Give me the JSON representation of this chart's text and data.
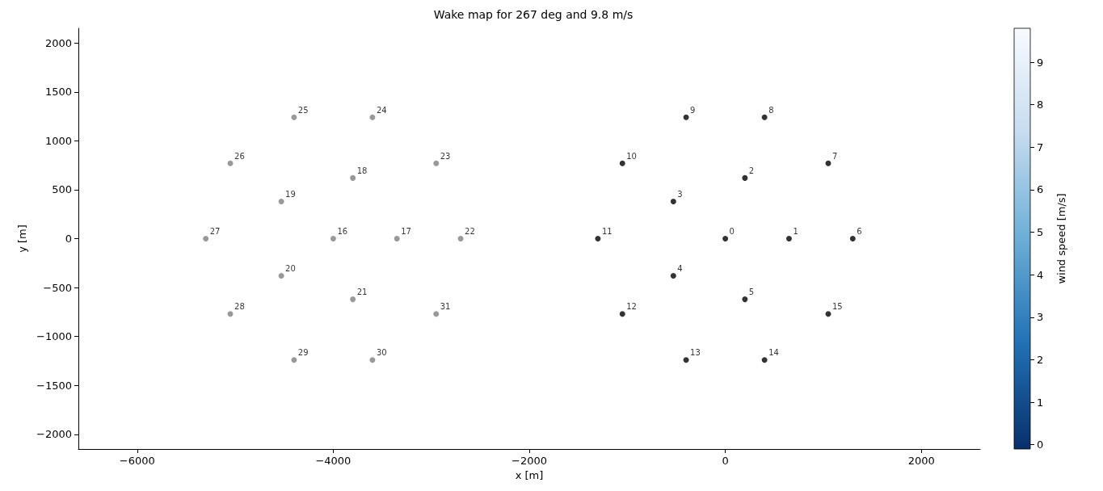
{
  "chart_data": {
    "type": "scatter",
    "title": "Wake map for 267 deg and 9.8 m/s",
    "xlabel": "x [m]",
    "ylabel": "y [m]",
    "clabel": "wind speed [m/s]",
    "series": [
      {
        "color": "#000000",
        "x": [
          0,
          650,
          200,
          -530,
          -530,
          200,
          1300,
          1050,
          400,
          -400,
          -1050,
          -1300,
          -1050,
          -400,
          400,
          1050
        ],
        "values": [
          0,
          0,
          620,
          380,
          -380,
          -620,
          0,
          770,
          1240,
          1240,
          770,
          0,
          -770,
          -1240,
          -1240,
          -770
        ]
      },
      {
        "color": "#808080",
        "x": [
          -4000,
          -3350,
          -3800,
          -4530,
          -4530,
          -3800,
          -2700,
          -2950,
          -3600,
          -4400,
          -5050,
          -5300,
          -5050,
          -4400,
          -3600,
          -2950
        ],
        "values": [
          0,
          0,
          620,
          380,
          -380,
          -620,
          0,
          770,
          1240,
          1240,
          770,
          0,
          -770,
          -1240,
          -1240,
          -770
        ]
      }
    ],
    "annotations": [
      {
        "text": "0",
        "x": 0,
        "y": 0
      },
      {
        "text": "1",
        "x": 650,
        "y": 0
      },
      {
        "text": "2",
        "x": 200,
        "y": 620
      },
      {
        "text": "3",
        "x": -530,
        "y": 380
      },
      {
        "text": "4",
        "x": -530,
        "y": -380
      },
      {
        "text": "5",
        "x": 200,
        "y": -620
      },
      {
        "text": "6",
        "x": 1300,
        "y": 0
      },
      {
        "text": "7",
        "x": 1050,
        "y": 770
      },
      {
        "text": "8",
        "x": 400,
        "y": 1240
      },
      {
        "text": "9",
        "x": -400,
        "y": 1240
      },
      {
        "text": "10",
        "x": -1050,
        "y": 770
      },
      {
        "text": "11",
        "x": -1300,
        "y": 0
      },
      {
        "text": "12",
        "x": -1050,
        "y": -770
      },
      {
        "text": "13",
        "x": -400,
        "y": -1240
      },
      {
        "text": "14",
        "x": 400,
        "y": -1240
      },
      {
        "text": "15",
        "x": 1050,
        "y": -770
      },
      {
        "text": "16",
        "x": -4000,
        "y": 0
      },
      {
        "text": "17",
        "x": -3350,
        "y": 0
      },
      {
        "text": "18",
        "x": -3800,
        "y": 620
      },
      {
        "text": "19",
        "x": -4530,
        "y": 380
      },
      {
        "text": "20",
        "x": -4530,
        "y": -380
      },
      {
        "text": "21",
        "x": -3800,
        "y": -620
      },
      {
        "text": "22",
        "x": -2700,
        "y": 0
      },
      {
        "text": "23",
        "x": -2950,
        "y": 770
      },
      {
        "text": "24",
        "x": -3600,
        "y": 1240
      },
      {
        "text": "25",
        "x": -4400,
        "y": 1240
      },
      {
        "text": "26",
        "x": -5050,
        "y": 770
      },
      {
        "text": "27",
        "x": -5300,
        "y": 0
      },
      {
        "text": "28",
        "x": -5050,
        "y": -770
      },
      {
        "text": "29",
        "x": -4400,
        "y": -1240
      },
      {
        "text": "30",
        "x": -3600,
        "y": -1240
      },
      {
        "text": "31",
        "x": -2950,
        "y": -770
      }
    ],
    "marker": "circle",
    "xlim": [
      -6600,
      2600
    ],
    "xticks": [
      {
        "value": -6000,
        "label": "−6000"
      },
      {
        "value": -4000,
        "label": "−4000"
      },
      {
        "value": -2000,
        "label": "−2000"
      },
      0,
      2000
    ],
    "ylim": [
      -2150,
      2150
    ],
    "yticks": [
      {
        "value": -2000,
        "label": "−2000"
      },
      {
        "value": -1500,
        "label": "−1500"
      },
      {
        "value": -1000,
        "label": "−1000"
      },
      {
        "value": -500,
        "label": "−500"
      },
      0,
      500,
      1000,
      1500,
      2000
    ],
    "clim": [
      -0.1,
      9.8
    ],
    "cticks": [
      0,
      1,
      2,
      3,
      4,
      5,
      6,
      7,
      8,
      9
    ],
    "grid": false
  }
}
